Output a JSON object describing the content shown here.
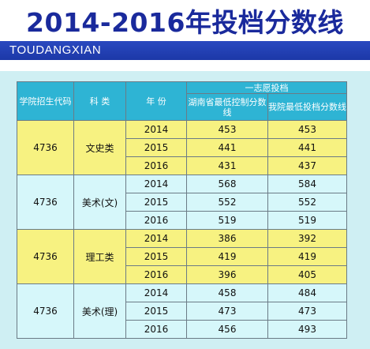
{
  "title": "2014-2016年投档分数线",
  "subtitle": "TOUDANGXIAN",
  "headers": {
    "code": "学院招生代码",
    "category": "科 类",
    "year": "年 份",
    "group": "一志愿投档",
    "province_min": "湖南省最低控制分数线",
    "school_min": "我院最低投档分数线"
  },
  "groups": [
    {
      "code": "4736",
      "category": "文史类",
      "rows": [
        {
          "year": "2014",
          "province": "453",
          "school": "453"
        },
        {
          "year": "2015",
          "province": "441",
          "school": "441"
        },
        {
          "year": "2016",
          "province": "431",
          "school": "437"
        }
      ]
    },
    {
      "code": "4736",
      "category": "美术(文)",
      "rows": [
        {
          "year": "2014",
          "province": "568",
          "school": "584"
        },
        {
          "year": "2015",
          "province": "552",
          "school": "552"
        },
        {
          "year": "2016",
          "province": "519",
          "school": "519"
        }
      ]
    },
    {
      "code": "4736",
      "category": "理工类",
      "rows": [
        {
          "year": "2014",
          "province": "386",
          "school": "392"
        },
        {
          "year": "2015",
          "province": "419",
          "school": "419"
        },
        {
          "year": "2016",
          "province": "396",
          "school": "405"
        }
      ]
    },
    {
      "code": "4736",
      "category": "美术(理)",
      "rows": [
        {
          "year": "2014",
          "province": "458",
          "school": "484"
        },
        {
          "year": "2015",
          "province": "473",
          "school": "473"
        },
        {
          "year": "2016",
          "province": "456",
          "school": "493"
        }
      ]
    }
  ]
}
